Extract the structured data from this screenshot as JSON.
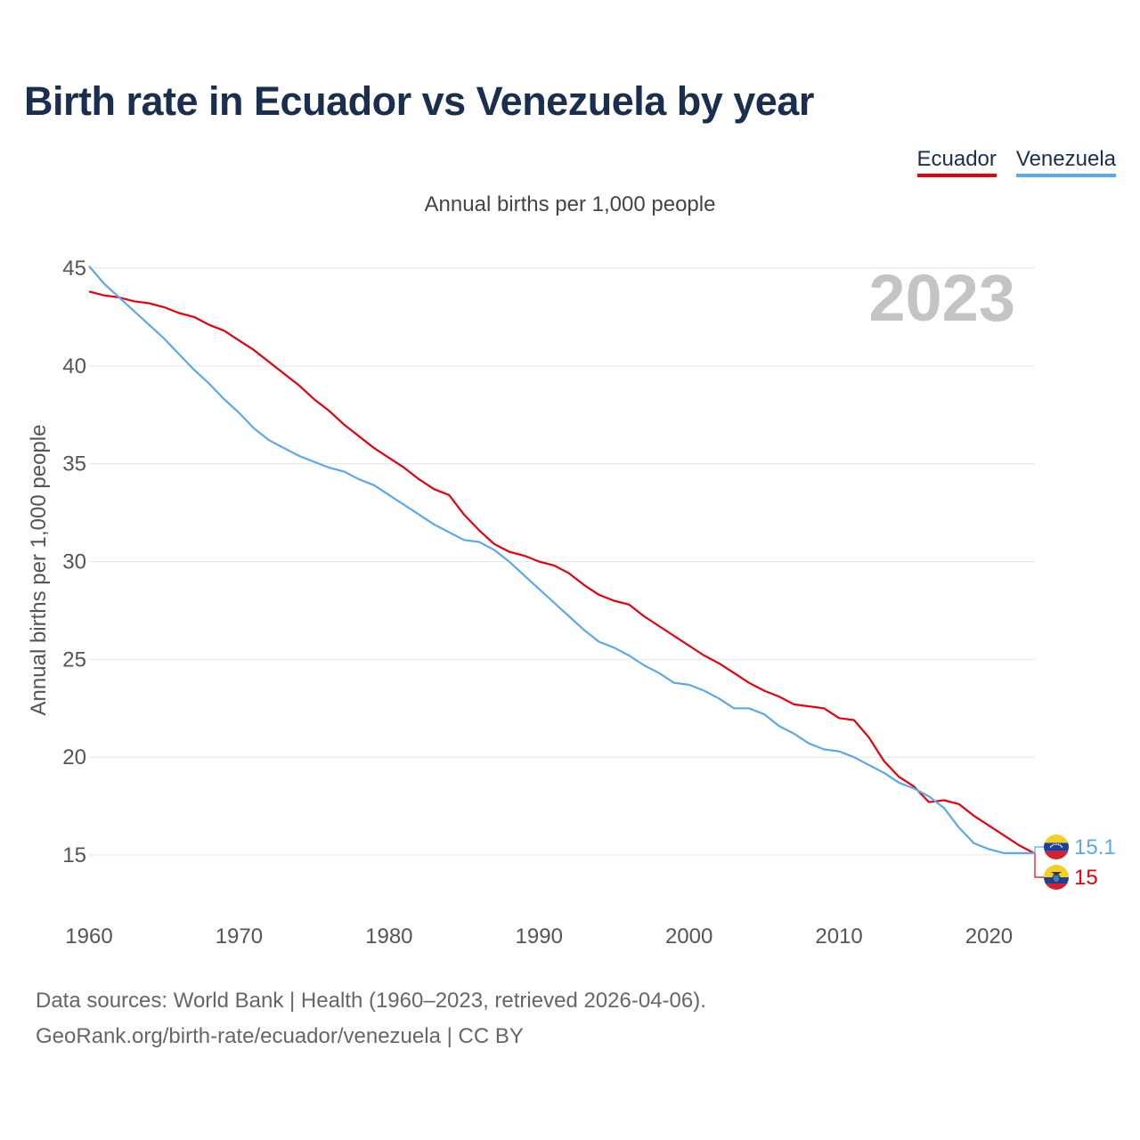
{
  "title": "Birth rate in Ecuador vs Venezuela by year",
  "subtitle": "Annual births per 1,000 people",
  "year_label": "2023",
  "legend": [
    {
      "name": "Ecuador",
      "color": "#e8000b"
    },
    {
      "name": "Venezuela",
      "color": "#5ca8ec"
    }
  ],
  "footer": {
    "sources": "Data sources: World Bank | Health (1960–2023, retrieved 2026-04-06).",
    "credit": "GeoRank.org/birth-rate/ecuador/venezuela | CC BY"
  },
  "chart_data": {
    "type": "line",
    "title": "Birth rate in Ecuador vs Venezuela by year",
    "xlabel": "",
    "ylabel": "Annual births per 1,000 people",
    "xlim": [
      1960,
      2023
    ],
    "ylim": [
      13,
      46
    ],
    "x_ticks": [
      1960,
      1970,
      1980,
      1990,
      2000,
      2010,
      2020
    ],
    "y_ticks": [
      15,
      20,
      25,
      30,
      35,
      40,
      45
    ],
    "grid": true,
    "x": [
      1960,
      1961,
      1962,
      1963,
      1964,
      1965,
      1966,
      1967,
      1968,
      1969,
      1970,
      1971,
      1972,
      1973,
      1974,
      1975,
      1976,
      1977,
      1978,
      1979,
      1980,
      1981,
      1982,
      1983,
      1984,
      1985,
      1986,
      1987,
      1988,
      1989,
      1990,
      1991,
      1992,
      1993,
      1994,
      1995,
      1996,
      1997,
      1998,
      1999,
      2000,
      2001,
      2002,
      2003,
      2004,
      2005,
      2006,
      2007,
      2008,
      2009,
      2010,
      2011,
      2012,
      2013,
      2014,
      2015,
      2016,
      2017,
      2018,
      2019,
      2020,
      2021,
      2022,
      2023
    ],
    "series": [
      {
        "name": "Ecuador",
        "color": "#e8000b",
        "end_label": "15",
        "icon": "ecuador-flag-icon",
        "values": [
          43.8,
          43.6,
          43.5,
          43.3,
          43.2,
          43.0,
          42.7,
          42.5,
          42.1,
          41.8,
          41.3,
          40.8,
          40.2,
          39.6,
          39.0,
          38.3,
          37.7,
          37.0,
          36.4,
          35.8,
          35.3,
          34.8,
          34.2,
          33.7,
          33.4,
          32.4,
          31.6,
          30.9,
          30.5,
          30.3,
          30.0,
          29.8,
          29.4,
          28.8,
          28.3,
          28.0,
          27.8,
          27.2,
          26.7,
          26.2,
          25.7,
          25.2,
          24.8,
          24.3,
          23.8,
          23.4,
          23.1,
          22.7,
          22.6,
          22.5,
          22.0,
          21.9,
          21.0,
          19.8,
          19.0,
          18.5,
          17.7,
          17.8,
          17.6,
          17.0,
          16.5,
          16.0,
          15.5,
          15.1
        ]
      },
      {
        "name": "Venezuela",
        "color": "#5ca8ec",
        "end_label": "15.1",
        "icon": "venezuela-flag-icon",
        "values": [
          45.1,
          44.2,
          43.5,
          42.8,
          42.1,
          41.4,
          40.6,
          39.8,
          39.1,
          38.3,
          37.6,
          36.8,
          36.2,
          35.8,
          35.4,
          35.1,
          34.8,
          34.6,
          34.2,
          33.9,
          33.4,
          32.9,
          32.4,
          31.9,
          31.5,
          31.1,
          31.0,
          30.6,
          30.0,
          29.3,
          28.6,
          27.9,
          27.2,
          26.5,
          25.9,
          25.6,
          25.2,
          24.7,
          24.3,
          23.8,
          23.7,
          23.4,
          23.0,
          22.5,
          22.5,
          22.2,
          21.6,
          21.2,
          20.7,
          20.4,
          20.3,
          20.0,
          19.6,
          19.2,
          18.7,
          18.4,
          18.0,
          17.4,
          16.4,
          15.6,
          15.3,
          15.1,
          15.1,
          15.1
        ]
      }
    ]
  }
}
